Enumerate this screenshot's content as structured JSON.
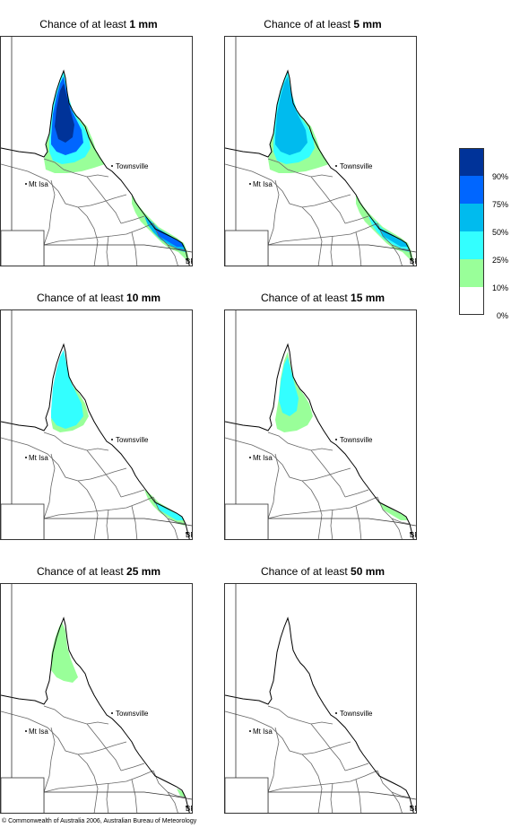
{
  "panels": [
    {
      "prefix": "Chance of at least",
      "amount": "1 mm",
      "level": 4
    },
    {
      "prefix": "Chance of at least",
      "amount": "5 mm",
      "level": 3
    },
    {
      "prefix": "Chance of at least",
      "amount": "10 mm",
      "level": 2
    },
    {
      "prefix": "Chance of at least",
      "amount": "15 mm",
      "level": 1.5
    },
    {
      "prefix": "Chance of at least",
      "amount": "25 mm",
      "level": 1
    },
    {
      "prefix": "Chance of at least",
      "amount": "50 mm",
      "level": 0
    }
  ],
  "map_labels": {
    "townsville": "Townsville",
    "mt_isa": "Mt Isa",
    "brisbane": "BRIS"
  },
  "legend": {
    "ticks": [
      "90%",
      "75%",
      "50%",
      "25%",
      "10%",
      "0%"
    ],
    "colors": [
      "#003399",
      "#0066ff",
      "#00bbee",
      "#33ffff",
      "#99ff99",
      "#ffffff"
    ]
  },
  "footer": {
    "copyright": "© Commonwealth of Australia 2006, Australian Bureau of Meteorology"
  }
}
